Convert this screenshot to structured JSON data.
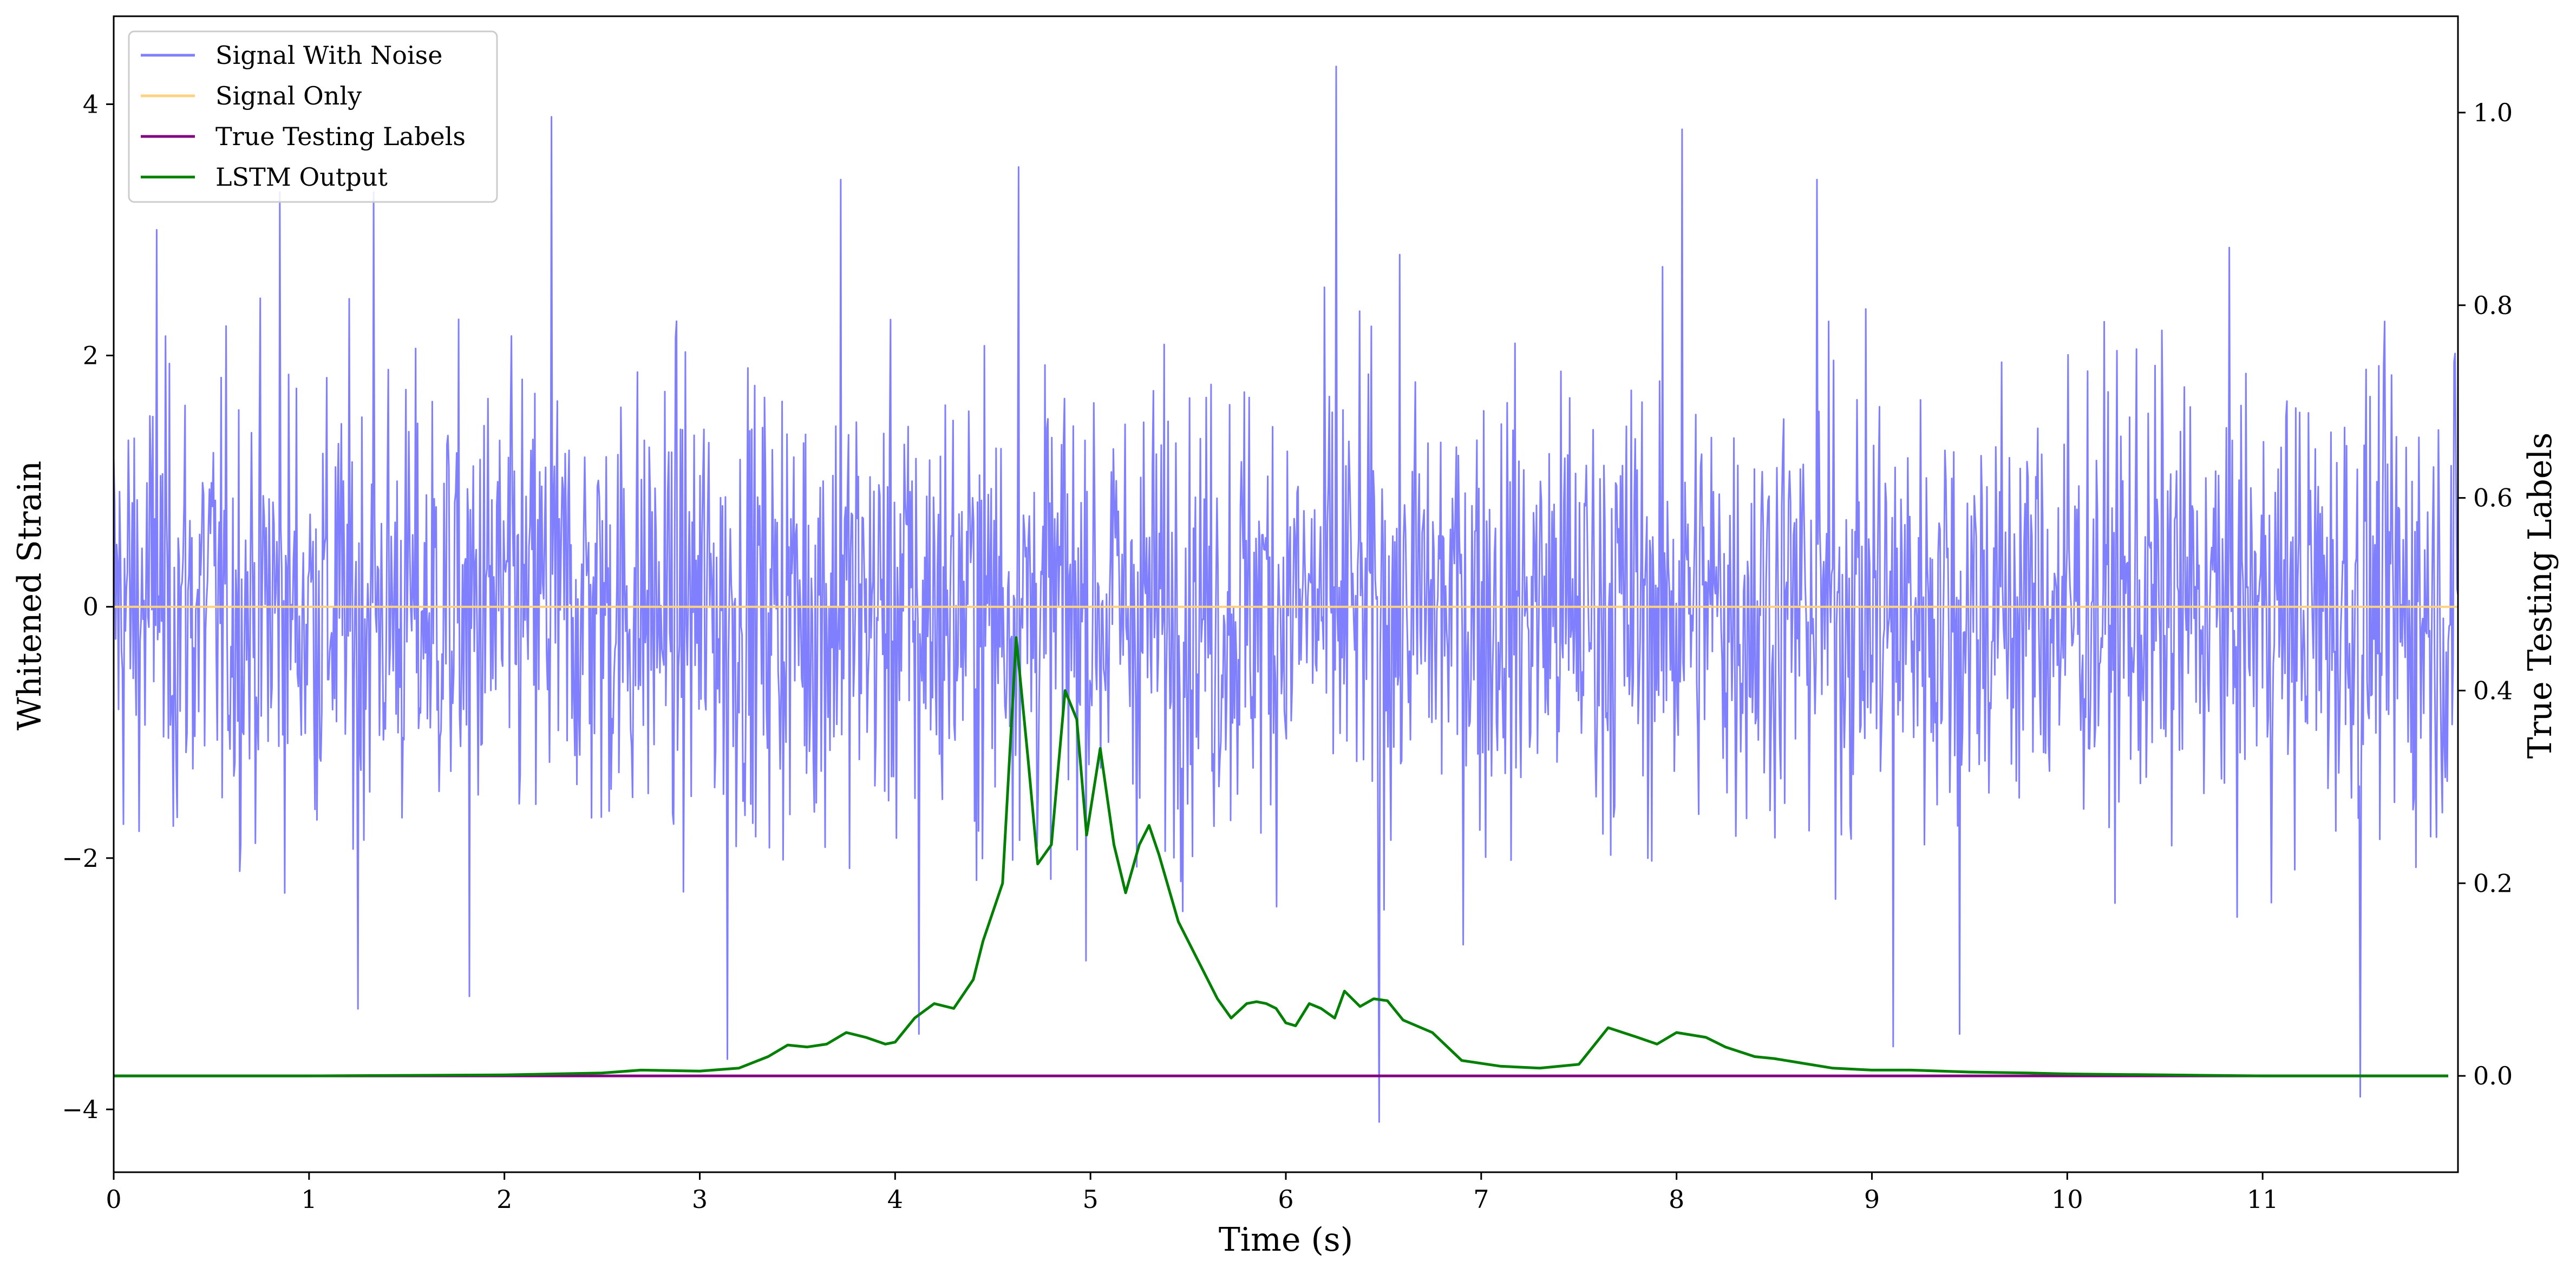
{
  "chart_data": {
    "type": "line",
    "xlabel": "Time (s)",
    "ylabel_left": "Whitened Strain",
    "ylabel_right": "True Testing Labels",
    "xlim": [
      0,
      12.0
    ],
    "ylim_left": [
      -4.5,
      4.7
    ],
    "ylim_right": [
      -0.1,
      1.1
    ],
    "x_ticks": [
      "0",
      "1",
      "2",
      "3",
      "4",
      "5",
      "6",
      "7",
      "8",
      "9",
      "10",
      "11"
    ],
    "y_left_ticks": [
      "−4",
      "−2",
      "0",
      "2",
      "4"
    ],
    "y_right_ticks": [
      "0.0",
      "0.2",
      "0.4",
      "0.6",
      "0.8",
      "1.0"
    ],
    "grid": false,
    "legend_position": "upper-left",
    "legend": [
      {
        "label": "Signal With Noise",
        "color": "#8080ff"
      },
      {
        "label": "Signal Only",
        "color": "#ffd27f"
      },
      {
        "label": "True Testing Labels",
        "color": "#800080"
      },
      {
        "label": "LSTM Output",
        "color": "#008000"
      }
    ],
    "series": [
      {
        "name": "Signal With Noise",
        "axis": "left",
        "color": "#8080ff",
        "noise_band": {
          "typical_amplitude": 1.6,
          "samples": 2400
        },
        "notable_peaks": [
          {
            "x": 0.22,
            "y": 3.0
          },
          {
            "x": 0.85,
            "y": 3.3
          },
          {
            "x": 1.33,
            "y": 3.3
          },
          {
            "x": 1.25,
            "y": -3.2
          },
          {
            "x": 1.82,
            "y": -3.1
          },
          {
            "x": 2.24,
            "y": 3.9
          },
          {
            "x": 3.14,
            "y": -3.6
          },
          {
            "x": 3.72,
            "y": 3.4
          },
          {
            "x": 4.12,
            "y": -3.4
          },
          {
            "x": 4.63,
            "y": 3.5
          },
          {
            "x": 6.26,
            "y": 4.3
          },
          {
            "x": 6.48,
            "y": -4.1
          },
          {
            "x": 8.03,
            "y": 3.8
          },
          {
            "x": 8.72,
            "y": 3.4
          },
          {
            "x": 9.11,
            "y": -3.5
          },
          {
            "x": 9.45,
            "y": -3.4
          },
          {
            "x": 11.5,
            "y": -3.9
          }
        ]
      },
      {
        "name": "Signal Only",
        "axis": "left",
        "color": "#ffd27f",
        "x": [
          0,
          12.0
        ],
        "y": [
          0,
          0
        ]
      },
      {
        "name": "True Testing Labels",
        "axis": "right",
        "color": "#800080",
        "x": [
          0,
          11.95
        ],
        "y": [
          0,
          0
        ]
      },
      {
        "name": "LSTM Output",
        "axis": "right",
        "color": "#008000",
        "x": [
          0,
          1.0,
          2.0,
          2.5,
          2.7,
          3.0,
          3.2,
          3.35,
          3.45,
          3.55,
          3.65,
          3.75,
          3.85,
          3.95,
          4.0,
          4.1,
          4.2,
          4.3,
          4.4,
          4.45,
          4.55,
          4.62,
          4.68,
          4.73,
          4.8,
          4.87,
          4.93,
          4.98,
          5.05,
          5.12,
          5.18,
          5.25,
          5.3,
          5.35,
          5.45,
          5.55,
          5.65,
          5.72,
          5.8,
          5.85,
          5.9,
          5.95,
          6.0,
          6.05,
          6.12,
          6.18,
          6.25,
          6.3,
          6.38,
          6.45,
          6.52,
          6.6,
          6.75,
          6.9,
          7.1,
          7.3,
          7.5,
          7.65,
          7.8,
          7.9,
          8.0,
          8.15,
          8.25,
          8.4,
          8.5,
          8.65,
          8.8,
          9.0,
          9.2,
          9.5,
          9.8,
          10.0,
          10.5,
          11.0,
          11.5,
          11.95
        ],
        "y": [
          0.0,
          0.0,
          0.001,
          0.003,
          0.006,
          0.005,
          0.008,
          0.02,
          0.032,
          0.03,
          0.033,
          0.045,
          0.04,
          0.033,
          0.035,
          0.06,
          0.075,
          0.07,
          0.1,
          0.14,
          0.2,
          0.455,
          0.33,
          0.22,
          0.24,
          0.4,
          0.37,
          0.25,
          0.34,
          0.24,
          0.19,
          0.24,
          0.26,
          0.23,
          0.16,
          0.12,
          0.08,
          0.06,
          0.075,
          0.077,
          0.075,
          0.07,
          0.055,
          0.052,
          0.075,
          0.07,
          0.06,
          0.088,
          0.072,
          0.08,
          0.078,
          0.058,
          0.045,
          0.016,
          0.01,
          0.008,
          0.012,
          0.05,
          0.04,
          0.033,
          0.045,
          0.04,
          0.03,
          0.02,
          0.018,
          0.013,
          0.008,
          0.006,
          0.006,
          0.004,
          0.003,
          0.002,
          0.001,
          0.0,
          0.0,
          0.0
        ]
      }
    ]
  }
}
